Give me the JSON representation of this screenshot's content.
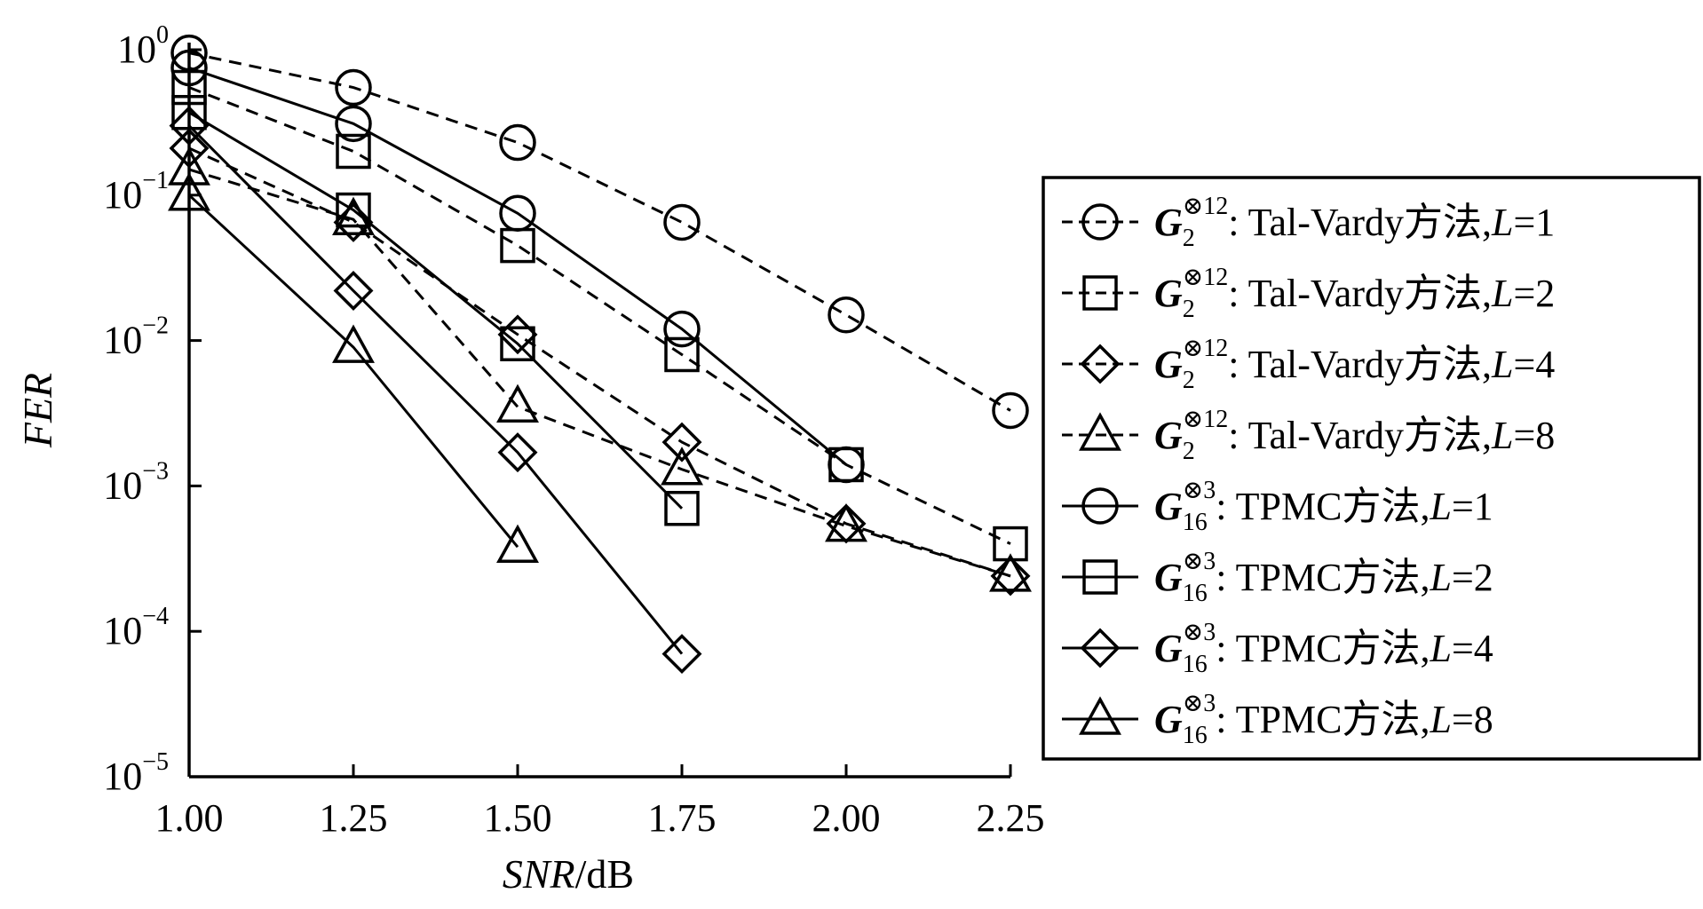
{
  "chart_data": {
    "type": "line",
    "xlabel": {
      "italic": "SNR",
      "rest": "/dB"
    },
    "ylabel": "FER",
    "x_ticks": [
      "1.00",
      "1.25",
      "1.50",
      "1.75",
      "2.00",
      "2.25"
    ],
    "y_ticks": [
      {
        "base": "10",
        "exp": "0"
      },
      {
        "base": "10",
        "exp": "−1"
      },
      {
        "base": "10",
        "exp": "−2"
      },
      {
        "base": "10",
        "exp": "−3"
      },
      {
        "base": "10",
        "exp": "−4"
      },
      {
        "base": "10",
        "exp": "−5"
      }
    ],
    "xlim": [
      1.0,
      2.25
    ],
    "ylim": [
      1e-05,
      1
    ],
    "y_scale": "log",
    "legend_position": "right",
    "series": [
      {
        "name": "G2⊗12: Tal-Vardy方法,L=1",
        "marker": "circle",
        "line": "dashed",
        "legend": {
          "sub": "2",
          "sup": "⊗12",
          "text": ": Tal-Vardy方法,",
          "L": "L",
          "eq": "=1"
        },
        "x": [
          1.0,
          1.25,
          1.5,
          1.75,
          2.0,
          2.25
        ],
        "y": [
          0.95,
          0.55,
          0.23,
          0.065,
          0.015,
          0.0033
        ]
      },
      {
        "name": "G2⊗12: Tal-Vardy方法,L=2",
        "marker": "square",
        "line": "dashed",
        "legend": {
          "sub": "2",
          "sup": "⊗12",
          "text": ": Tal-Vardy方法,",
          "L": "L",
          "eq": "=2"
        },
        "x": [
          1.0,
          1.25,
          1.5,
          1.75,
          2.0,
          2.25
        ],
        "y": [
          0.55,
          0.2,
          0.045,
          0.008,
          0.0014,
          0.0004
        ]
      },
      {
        "name": "G2⊗12: Tal-Vardy方法,L=4",
        "marker": "diamond",
        "line": "dashed",
        "legend": {
          "sub": "2",
          "sup": "⊗12",
          "text": ": Tal-Vardy方法,",
          "L": "L",
          "eq": "=4"
        },
        "x": [
          1.0,
          1.25,
          1.5,
          1.75,
          2.0,
          2.25
        ],
        "y": [
          0.21,
          0.065,
          0.011,
          0.002,
          0.00055,
          0.00024
        ]
      },
      {
        "name": "G2⊗12: Tal-Vardy方法,L=8",
        "marker": "triangle",
        "line": "dashed",
        "legend": {
          "sub": "2",
          "sup": "⊗12",
          "text": ": Tal-Vardy方法,",
          "L": "L",
          "eq": "=8"
        },
        "x": [
          1.0,
          1.25,
          1.5,
          1.75,
          2.0,
          2.25
        ],
        "y": [
          0.15,
          0.068,
          0.0035,
          0.0013,
          0.00053,
          0.00024
        ]
      },
      {
        "name": "G16⊗3: TPMC方法,L=1",
        "marker": "circle",
        "line": "solid",
        "legend": {
          "sub": "16",
          "sup": "⊗3",
          "text": ": TPMC方法,",
          "L": "L",
          "eq": "=1"
        },
        "x": [
          1.0,
          1.25,
          1.5,
          1.75,
          2.0
        ],
        "y": [
          0.75,
          0.31,
          0.075,
          0.012,
          0.0014
        ]
      },
      {
        "name": "G16⊗3: TPMC方法,L=2",
        "marker": "square",
        "line": "solid",
        "legend": {
          "sub": "16",
          "sup": "⊗3",
          "text": ": TPMC方法,",
          "L": "L",
          "eq": "=2"
        },
        "x": [
          1.0,
          1.25,
          1.5,
          1.75
        ],
        "y": [
          0.37,
          0.079,
          0.0095,
          0.0007
        ]
      },
      {
        "name": "G16⊗3: TPMC方法,L=4",
        "marker": "diamond",
        "line": "solid",
        "legend": {
          "sub": "16",
          "sup": "⊗3",
          "text": ": TPMC方法,",
          "L": "L",
          "eq": "=4"
        },
        "x": [
          1.0,
          1.25,
          1.5,
          1.75
        ],
        "y": [
          0.3,
          0.022,
          0.0017,
          7e-05
        ]
      },
      {
        "name": "G16⊗3: TPMC方法,L=8",
        "marker": "triangle",
        "line": "solid",
        "legend": {
          "sub": "16",
          "sup": "⊗3",
          "text": ": TPMC方法,",
          "L": "L",
          "eq": "=8"
        },
        "x": [
          1.0,
          1.25,
          1.5
        ],
        "y": [
          0.1,
          0.009,
          0.00038
        ]
      }
    ]
  }
}
